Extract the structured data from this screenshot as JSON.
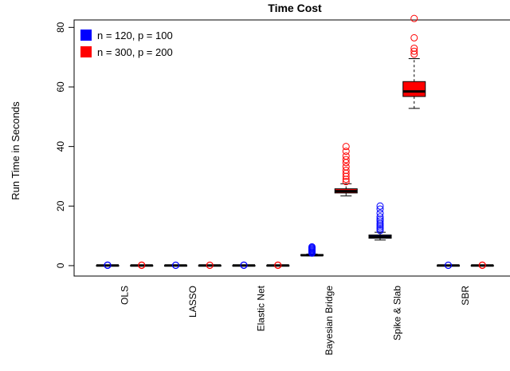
{
  "chart_data": {
    "type": "boxplot",
    "title": "Time Cost",
    "xlabel": "",
    "ylabel": "Run Time in Seconds",
    "ylim": [
      -3.5,
      82.5
    ],
    "yticks": [
      0,
      20,
      40,
      60,
      80
    ],
    "categories": [
      "OLS",
      "LASSO",
      "Elastic Net",
      "Bayesian Bridge",
      "Spike & Slab",
      "SBR"
    ],
    "legend": {
      "position": "top-left"
    },
    "series": [
      {
        "name": "n = 120, p = 100",
        "color": "#0000ff",
        "boxes": [
          {
            "min": 0.0,
            "q1": 0.0,
            "median": 0.05,
            "q3": 0.1,
            "max": 0.1,
            "outliers": [
              0.1,
              0.15,
              0.2
            ]
          },
          {
            "min": 0.0,
            "q1": 0.0,
            "median": 0.05,
            "q3": 0.1,
            "max": 0.1,
            "outliers": [
              0.1,
              0.15
            ]
          },
          {
            "min": 0.0,
            "q1": 0.0,
            "median": 0.05,
            "q3": 0.1,
            "max": 0.1,
            "outliers": [
              0.1,
              0.2
            ]
          },
          {
            "min": 3.3,
            "q1": 3.4,
            "median": 3.5,
            "q3": 3.7,
            "max": 3.9,
            "outliers": [
              4.2,
              4.5,
              4.8,
              5.1,
              5.4,
              5.7,
              6.0,
              6.3
            ]
          },
          {
            "min": 8.6,
            "q1": 9.2,
            "median": 9.7,
            "q3": 10.3,
            "max": 11.2,
            "outliers": [
              11.8,
              12.4,
              13.0,
              13.6,
              14.2,
              15.0,
              15.6,
              16.4,
              17.6,
              19.0,
              20.0
            ]
          },
          {
            "min": 0.0,
            "q1": 0.0,
            "median": 0.05,
            "q3": 0.1,
            "max": 0.1,
            "outliers": [
              0.1,
              0.15
            ]
          }
        ]
      },
      {
        "name": "n = 300, p = 200",
        "color": "#ff0000",
        "boxes": [
          {
            "min": 0.0,
            "q1": 0.0,
            "median": 0.05,
            "q3": 0.1,
            "max": 0.1,
            "outliers": [
              0.1,
              0.2
            ]
          },
          {
            "min": 0.0,
            "q1": 0.0,
            "median": 0.05,
            "q3": 0.1,
            "max": 0.1,
            "outliers": [
              0.1,
              0.15
            ]
          },
          {
            "min": 0.0,
            "q1": 0.0,
            "median": 0.05,
            "q3": 0.1,
            "max": 0.1,
            "outliers": [
              0.1,
              0.2
            ]
          },
          {
            "min": 23.4,
            "q1": 24.4,
            "median": 25.0,
            "q3": 25.8,
            "max": 27.5,
            "outliers": [
              28.2,
              29.0,
              30.0,
              31.0,
              32.0,
              33.2,
              34.6,
              35.6,
              36.8,
              38.4,
              40.0
            ]
          },
          {
            "min": 52.8,
            "q1": 56.8,
            "median": 58.5,
            "q3": 61.8,
            "max": 69.5,
            "outliers": [
              71.0,
              72.0,
              73.0,
              76.5,
              83.0
            ]
          },
          {
            "min": 0.0,
            "q1": 0.0,
            "median": 0.05,
            "q3": 0.1,
            "max": 0.1,
            "outliers": [
              0.1,
              0.2
            ]
          }
        ]
      }
    ]
  }
}
